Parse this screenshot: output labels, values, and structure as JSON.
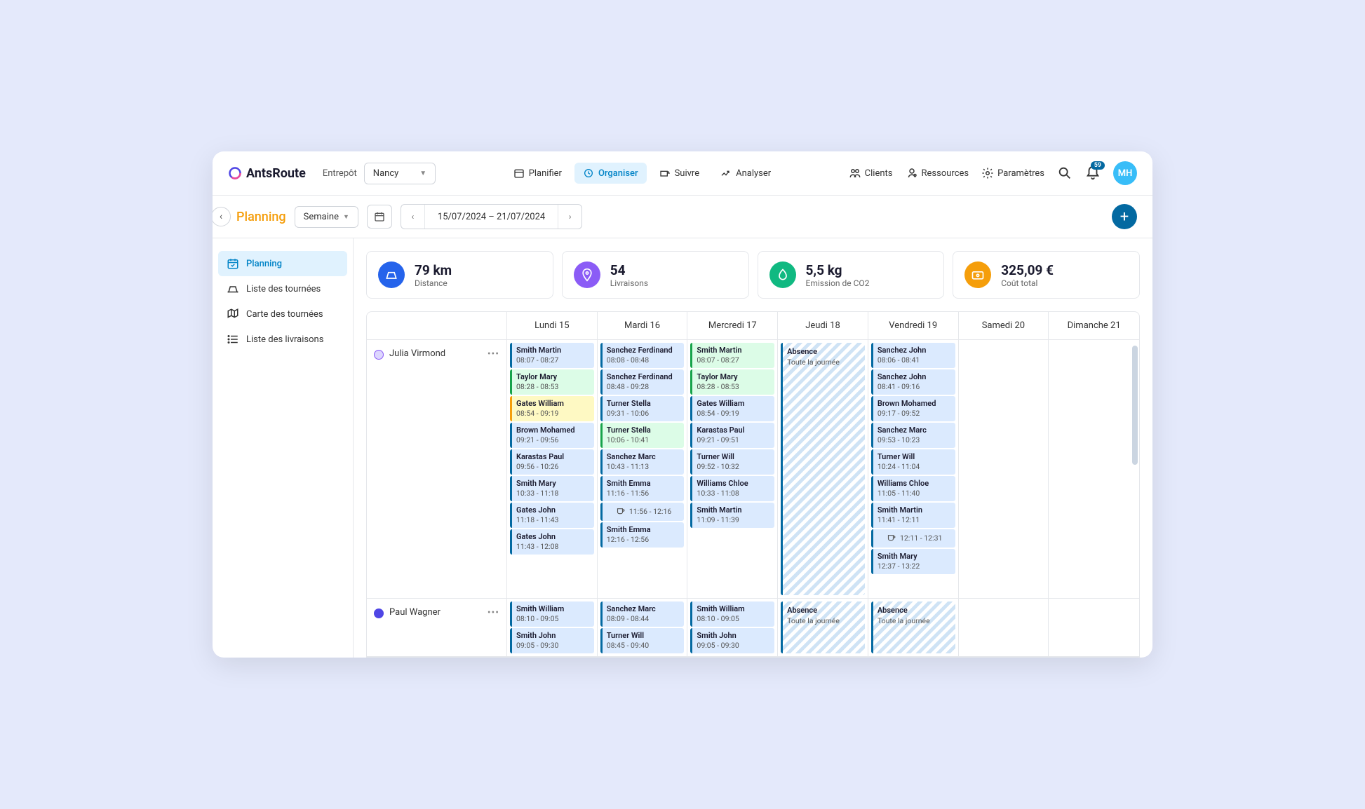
{
  "brand": "AntsRoute",
  "depot_label": "Entrepôt",
  "depot_value": "Nancy",
  "navtabs": [
    {
      "label": "Planifier",
      "active": false
    },
    {
      "label": "Organiser",
      "active": true
    },
    {
      "label": "Suivre",
      "active": false
    },
    {
      "label": "Analyser",
      "active": false
    }
  ],
  "topright": [
    {
      "label": "Clients"
    },
    {
      "label": "Ressources"
    },
    {
      "label": "Paramètres"
    }
  ],
  "notif_count": "59",
  "avatar": "MH",
  "page_title": "Planning",
  "period_label": "Semaine",
  "date_range": "15/07/2024 – 21/07/2024",
  "sidebar": [
    {
      "label": "Planning",
      "active": true
    },
    {
      "label": "Liste des tournées",
      "active": false
    },
    {
      "label": "Carte des tournées",
      "active": false
    },
    {
      "label": "Liste des livraisons",
      "active": false
    }
  ],
  "stats": [
    {
      "value": "79 km",
      "label": "Distance",
      "color": "#2563eb",
      "bg": "#dbeafe"
    },
    {
      "value": "54",
      "label": "Livraisons",
      "color": "#8b5cf6",
      "bg": "#ede9fe"
    },
    {
      "value": "5,5 kg",
      "label": "Emission de CO2",
      "color": "#10b981",
      "bg": "#d1fae5"
    },
    {
      "value": "325,09 €",
      "label": "Coût total",
      "color": "#f59e0b",
      "bg": "#fef3c7"
    }
  ],
  "days": [
    "Lundi 15",
    "Mardi 16",
    "Mercredi 17",
    "Jeudi 18",
    "Vendredi 19",
    "Samedi 20",
    "Dimanche 21"
  ],
  "absence_label": "Absence",
  "absence_sub": "Toute la journée",
  "colors": {
    "blue": {
      "border": "#0369a1",
      "bg": "#dbeafe"
    },
    "green": {
      "border": "#16a34a",
      "bg": "#dcfce7"
    },
    "yellow": {
      "border": "#f59e0b",
      "bg": "#fef9c3"
    }
  },
  "drivers": [
    {
      "name": "Julia Virmond",
      "dot_bg": "#ddd6fe",
      "dot_border": "#8b5cf6",
      "days": [
        [
          {
            "n": "Smith Martin",
            "t": "08:07 - 08:27",
            "c": "blue"
          },
          {
            "n": "Taylor Mary",
            "t": "08:28 - 08:53",
            "c": "green"
          },
          {
            "n": "Gates William",
            "t": "08:54 - 09:19",
            "c": "yellow"
          },
          {
            "n": "Brown Mohamed",
            "t": "09:21 - 09:56",
            "c": "blue"
          },
          {
            "n": "Karastas Paul",
            "t": "09:56 - 10:26",
            "c": "blue"
          },
          {
            "n": "Smith Mary",
            "t": "10:33 - 11:18",
            "c": "blue"
          },
          {
            "n": "Gates John",
            "t": "11:18 - 11:43",
            "c": "blue"
          },
          {
            "n": "Gates John",
            "t": "11:43 - 12:08",
            "c": "blue"
          }
        ],
        [
          {
            "n": "Sanchez Ferdinand",
            "t": "08:08 - 08:48",
            "c": "blue"
          },
          {
            "n": "Sanchez Ferdinand",
            "t": "08:48 - 09:28",
            "c": "blue"
          },
          {
            "n": "Turner Stella",
            "t": "09:31 - 10:06",
            "c": "blue"
          },
          {
            "n": "Turner Stella",
            "t": "10:06 - 10:41",
            "c": "green"
          },
          {
            "n": "Sanchez Marc",
            "t": "10:43 - 11:13",
            "c": "blue"
          },
          {
            "n": "Smith Emma",
            "t": "11:16 - 11:56",
            "c": "blue"
          },
          {
            "break": true,
            "t": "11:56 - 12:16",
            "c": "blue"
          },
          {
            "n": "Smith Emma",
            "t": "12:16 - 12:56",
            "c": "blue"
          }
        ],
        [
          {
            "n": "Smith Martin",
            "t": "08:07 - 08:27",
            "c": "green"
          },
          {
            "n": "Taylor Mary",
            "t": "08:28 - 08:53",
            "c": "green"
          },
          {
            "n": "Gates William",
            "t": "08:54 - 09:19",
            "c": "blue"
          },
          {
            "n": "Karastas Paul",
            "t": "09:21 - 09:51",
            "c": "blue"
          },
          {
            "n": "Turner Will",
            "t": "09:52 - 10:32",
            "c": "blue"
          },
          {
            "n": "Williams Chloe",
            "t": "10:33 - 11:08",
            "c": "blue"
          },
          {
            "n": "Smith Martin",
            "t": "11:09 - 11:39",
            "c": "blue"
          }
        ],
        [
          {
            "absence": true
          }
        ],
        [
          {
            "n": "Sanchez John",
            "t": "08:06 - 08:41",
            "c": "blue"
          },
          {
            "n": "Sanchez John",
            "t": "08:41 - 09:16",
            "c": "blue"
          },
          {
            "n": "Brown Mohamed",
            "t": "09:17 - 09:52",
            "c": "blue"
          },
          {
            "n": "Sanchez Marc",
            "t": "09:53 - 10:23",
            "c": "blue"
          },
          {
            "n": "Turner Will",
            "t": "10:24 - 11:04",
            "c": "blue"
          },
          {
            "n": "Williams Chloe",
            "t": "11:05 - 11:40",
            "c": "blue"
          },
          {
            "n": "Smith Martin",
            "t": "11:41 - 12:11",
            "c": "blue"
          },
          {
            "break": true,
            "t": "12:11 - 12:31",
            "c": "blue"
          },
          {
            "n": "Smith Mary",
            "t": "12:37 - 13:22",
            "c": "blue"
          }
        ],
        [],
        []
      ]
    },
    {
      "name": "Paul Wagner",
      "dot_bg": "#4f46e5",
      "dot_border": "#4f46e5",
      "days": [
        [
          {
            "n": "Smith William",
            "t": "08:10 - 09:05",
            "c": "blue"
          },
          {
            "n": "Smith John",
            "t": "09:05 - 09:30",
            "c": "blue"
          }
        ],
        [
          {
            "n": "Sanchez Marc",
            "t": "08:09 - 08:44",
            "c": "blue"
          },
          {
            "n": "Turner Will",
            "t": "08:45 - 09:40",
            "c": "blue"
          }
        ],
        [
          {
            "n": "Smith William",
            "t": "08:10 - 09:05",
            "c": "blue"
          },
          {
            "n": "Smith John",
            "t": "09:05 - 09:30",
            "c": "blue"
          }
        ],
        [
          {
            "absence": true,
            "short": true
          }
        ],
        [
          {
            "absence": true,
            "short": true
          }
        ],
        [],
        []
      ]
    }
  ]
}
